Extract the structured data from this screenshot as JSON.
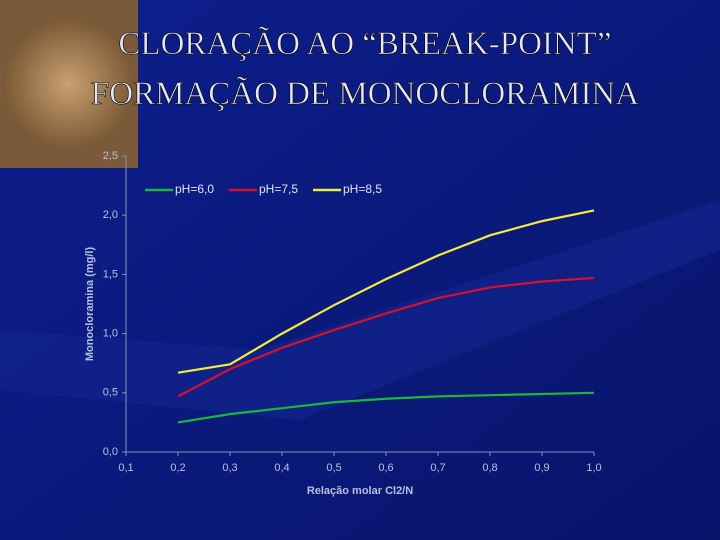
{
  "slide": {
    "title_lines": [
      "CLORAÇÃO AO “BREAK-POINT”",
      "FORMAÇÃO DE MONOCLORAMINA"
    ]
  },
  "chart_data": {
    "type": "line",
    "x_label": "Relação molar Cl2/N",
    "y_label": "Monocloramina (mg/l)",
    "x": [
      0.2,
      0.3,
      0.4,
      0.5,
      0.6,
      0.7,
      0.8,
      0.9,
      1.0
    ],
    "series": [
      {
        "name": "pH=6,0",
        "color": "#1fb43c",
        "values": [
          0.25,
          0.32,
          0.37,
          0.42,
          0.45,
          0.47,
          0.48,
          0.49,
          0.5
        ]
      },
      {
        "name": "pH=7,5",
        "color": "#d8102c",
        "values": [
          0.47,
          0.7,
          0.88,
          1.03,
          1.17,
          1.3,
          1.39,
          1.44,
          1.47
        ]
      },
      {
        "name": "pH=8,5",
        "color": "#f2ec3c",
        "values": [
          0.67,
          0.74,
          1.0,
          1.24,
          1.46,
          1.66,
          1.83,
          1.95,
          2.04
        ]
      }
    ],
    "xlim": [
      0.1,
      1.0
    ],
    "xticks": [
      {
        "value": 0.1,
        "label": "0,1"
      },
      {
        "value": 0.2,
        "label": "0,2"
      },
      {
        "value": 0.3,
        "label": "0,3"
      },
      {
        "value": 0.4,
        "label": "0,4"
      },
      {
        "value": 0.5,
        "label": "0,5"
      },
      {
        "value": 0.6,
        "label": "0,6"
      },
      {
        "value": 0.7,
        "label": "0,7"
      },
      {
        "value": 0.8,
        "label": "0,8"
      },
      {
        "value": 0.9,
        "label": "0,9"
      },
      {
        "value": 1.0,
        "label": "1,0"
      }
    ],
    "ylim": [
      0,
      2.5
    ],
    "yticks": [
      {
        "value": 0,
        "label": "0,0"
      },
      {
        "value": 0.5,
        "label": "0,5"
      },
      {
        "value": 1.0,
        "label": "1,0"
      },
      {
        "value": 1.5,
        "label": "1,5"
      },
      {
        "value": 2.0,
        "label": "2,0"
      },
      {
        "value": 2.5,
        "label": "2,5"
      }
    ],
    "grid": false,
    "legend": "top-left"
  }
}
